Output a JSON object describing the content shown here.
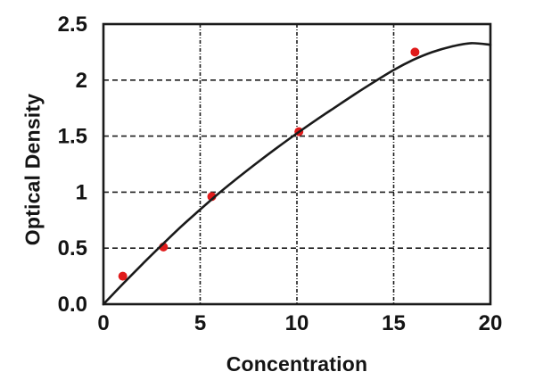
{
  "figure": {
    "background": "#ffffff",
    "axis_color": "#1a1a1a",
    "grid_color": "#1d1d1d",
    "text_color": "#141414"
  },
  "chart_data": {
    "type": "scatter",
    "title": "",
    "xlabel": "Concentration",
    "ylabel": "Optical Density",
    "xlim": [
      0,
      20
    ],
    "ylim": [
      0,
      2.5
    ],
    "grid": {
      "enabled": true,
      "style": "dashed",
      "x_lines": [
        5,
        10,
        15
      ],
      "y_lines": [
        0.5,
        1.0,
        1.5,
        2.0
      ]
    },
    "legend": "none",
    "x_ticks": [
      {
        "value": 0,
        "label": "0"
      },
      {
        "value": 5,
        "label": "5"
      },
      {
        "value": 10,
        "label": "10"
      },
      {
        "value": 15,
        "label": "15"
      },
      {
        "value": 20,
        "label": "20"
      }
    ],
    "y_ticks": [
      {
        "value": 0.0,
        "label": "0.0"
      },
      {
        "value": 0.5,
        "label": "0.5"
      },
      {
        "value": 1.0,
        "label": "1"
      },
      {
        "value": 1.5,
        "label": "1.5"
      },
      {
        "value": 2.0,
        "label": "2"
      },
      {
        "value": 2.5,
        "label": "2.5"
      }
    ],
    "series": [
      {
        "name": "standard-data-points",
        "kind": "scatter",
        "color": "#e01b1b",
        "marker": "circle",
        "marker_radius": 5,
        "points": [
          [
            1.0,
            0.25
          ],
          [
            3.1,
            0.51
          ],
          [
            5.6,
            0.96
          ],
          [
            10.1,
            1.54
          ],
          [
            16.1,
            2.25
          ]
        ]
      },
      {
        "name": "fitted-curve",
        "kind": "line",
        "color": "#1a1a1a",
        "stroke_width": 2.6,
        "points": [
          [
            0,
            0.0
          ],
          [
            1,
            0.18
          ],
          [
            2,
            0.355
          ],
          [
            3,
            0.525
          ],
          [
            4,
            0.69
          ],
          [
            5,
            0.845
          ],
          [
            6,
            0.995
          ],
          [
            7,
            1.135
          ],
          [
            8,
            1.27
          ],
          [
            9,
            1.4
          ],
          [
            10,
            1.525
          ],
          [
            11,
            1.645
          ],
          [
            12,
            1.76
          ],
          [
            13,
            1.875
          ],
          [
            14,
            1.985
          ],
          [
            15,
            2.09
          ],
          [
            16,
            2.18
          ],
          [
            17,
            2.25
          ],
          [
            18,
            2.3
          ],
          [
            19,
            2.33
          ],
          [
            20,
            2.315
          ]
        ]
      }
    ]
  }
}
